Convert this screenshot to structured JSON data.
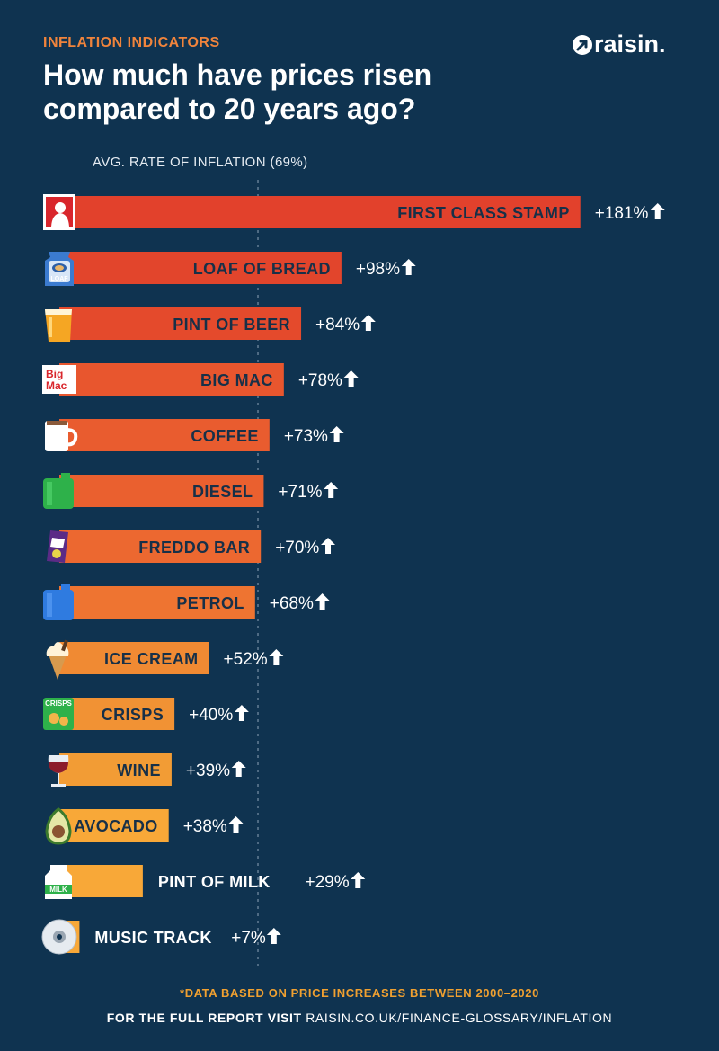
{
  "header": {
    "eyebrow": "INFLATION INDICATORS",
    "title": "How much have prices risen compared to 20 years ago?",
    "brand": "raisin."
  },
  "chart_data": {
    "type": "bar",
    "orientation": "horizontal",
    "reference_line": {
      "label": "AVG. RATE OF INFLATION (69%)",
      "value": 69
    },
    "unit": "%",
    "categories": [
      "FIRST CLASS STAMP",
      "LOAF OF BREAD",
      "PINT OF BEER",
      "BIG MAC",
      "COFFEE",
      "DIESEL",
      "FREDDO BAR",
      "PETROL",
      "ICE CREAM",
      "CRISPS",
      "WINE",
      "AVOCADO",
      "PINT OF MILK",
      "MUSIC TRACK"
    ],
    "values": [
      181,
      98,
      84,
      78,
      73,
      71,
      70,
      68,
      52,
      40,
      39,
      38,
      29,
      7
    ],
    "value_labels": [
      "+181%",
      "+98%",
      "+84%",
      "+78%",
      "+73%",
      "+71%",
      "+70%",
      "+68%",
      "+52%",
      "+40%",
      "+39%",
      "+38%",
      "+29%",
      "+7%"
    ],
    "icons": [
      "stamp-icon",
      "bread-icon",
      "beer-icon",
      "big-mac-icon",
      "coffee-mug-icon",
      "diesel-can-icon",
      "freddo-bar-icon",
      "petrol-can-icon",
      "ice-cream-icon",
      "crisps-icon",
      "wine-glass-icon",
      "avocado-icon",
      "milk-bottle-icon",
      "cd-icon"
    ],
    "icon_text": {
      "bread": "LOAF",
      "bigmac": [
        "Big",
        "Mac"
      ],
      "crisps": "CRISPS",
      "milk": "MILK"
    },
    "bar_colors": [
      "#e2412c",
      "#e2452c",
      "#e44a2c",
      "#e8562e",
      "#e95c2f",
      "#ea602f",
      "#ec6830",
      "#ee7431",
      "#f08a33",
      "#f19234",
      "#f29c35",
      "#f8a838",
      "#f8a838",
      "#f8a838"
    ],
    "grid": false
  },
  "footer": {
    "note": "*DATA BASED ON PRICE INCREASES BETWEEN 2000–2020",
    "source_lead": "FOR THE FULL REPORT VISIT",
    "source_url": "RAISIN.CO.UK/FINANCE-GLOSSARY/INFLATION"
  },
  "colors": {
    "background": "#0f3350",
    "accent": "#f0843c",
    "label_dark": "#173048",
    "label_light": "#ffffff"
  }
}
